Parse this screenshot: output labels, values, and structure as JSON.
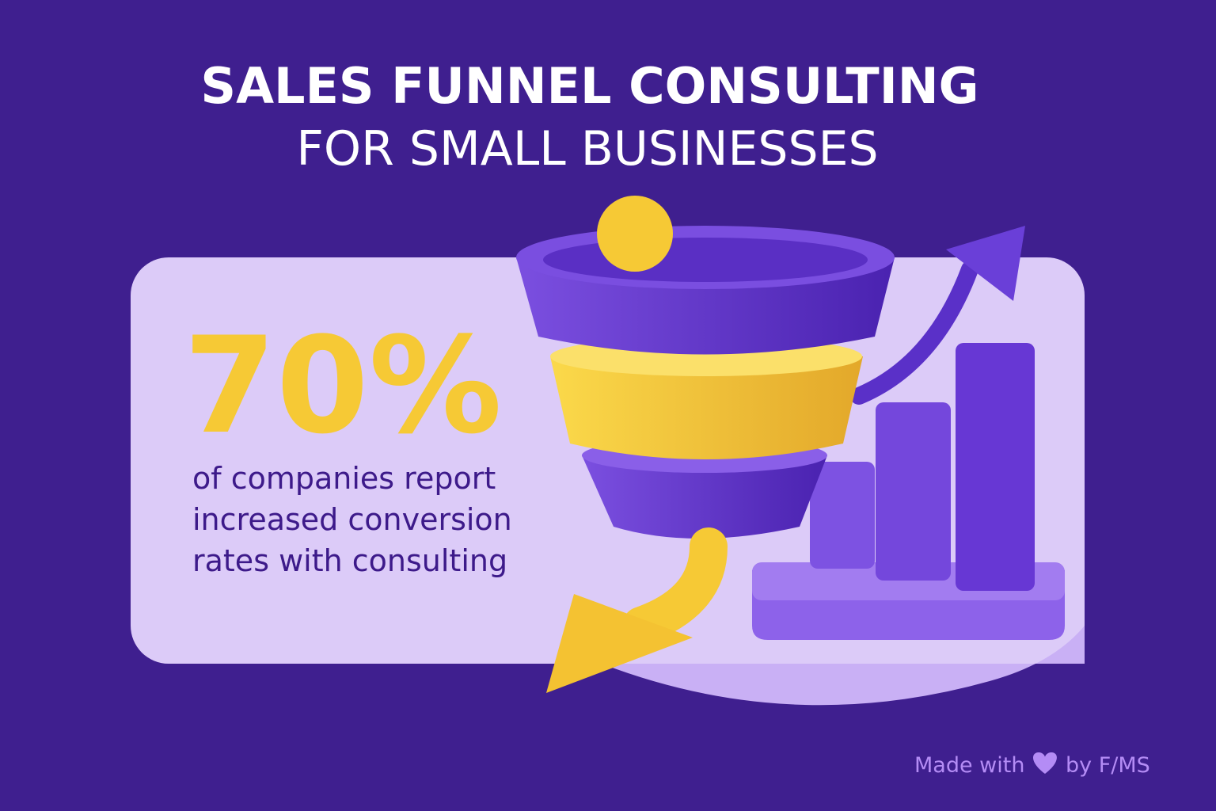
{
  "header": {
    "title_line1": "SALES FUNNEL CONSULTING",
    "title_line2": "FOR SMALL BUSINESSES"
  },
  "stat": {
    "value": "70%",
    "description": [
      "of companies report",
      "increased conversion",
      "rates with consulting"
    ]
  },
  "footer": {
    "made_with": "Made with",
    "by": "by F/MS"
  }
}
